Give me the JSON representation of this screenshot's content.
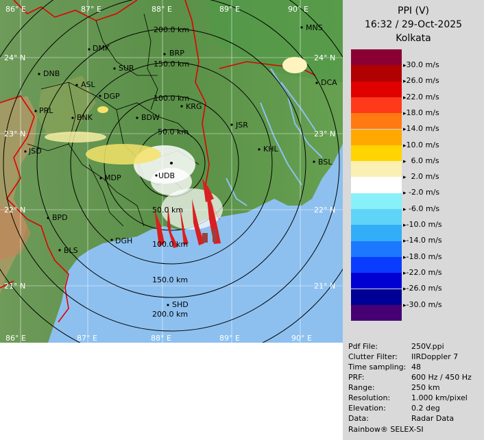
{
  "panel": {
    "product": "PPI (V)",
    "datetime": "16:32 / 29-Oct-2025",
    "station": "Kolkata"
  },
  "scale": [
    {
      "label": "30.0 m/s",
      "color": "#8b0034"
    },
    {
      "label": "26.0 m/s",
      "color": "#b00000"
    },
    {
      "label": "22.0 m/s",
      "color": "#e00000"
    },
    {
      "label": "18.0 m/s",
      "color": "#ff3a1a"
    },
    {
      "label": "14.0 m/s",
      "color": "#ff7a10"
    },
    {
      "label": "10.0 m/s",
      "color": "#ffa800"
    },
    {
      "label": "  6.0 m/s",
      "color": "#ffd400"
    },
    {
      "label": "  2.0 m/s",
      "color": "#faf0b4"
    },
    {
      "label": " -2.0 m/s",
      "color": "#ffffff"
    },
    {
      "label": " -6.0 m/s",
      "color": "#88f0f8"
    },
    {
      "label": "-10.0 m/s",
      "color": "#5fd4f8"
    },
    {
      "label": "-14.0 m/s",
      "color": "#32aef8"
    },
    {
      "label": "-18.0 m/s",
      "color": "#1c78ff"
    },
    {
      "label": "-22.0 m/s",
      "color": "#0a3cff"
    },
    {
      "label": "-26.0 m/s",
      "color": "#0000d2"
    },
    {
      "label": "-30.0 m/s",
      "color": "#000096"
    },
    {
      "label": "",
      "color": "#460073"
    }
  ],
  "meta": [
    {
      "key": "Pdf File:",
      "value": "250V.ppi"
    },
    {
      "key": "Clutter Filter:",
      "value": "IIRDoppler 7"
    },
    {
      "key": "Time sampling:",
      "value": "48"
    },
    {
      "key": "PRF:",
      "value": "600 Hz / 450 Hz"
    },
    {
      "key": "Range:",
      "value": "250 km"
    },
    {
      "key": "Resolution:",
      "value": "1.000 km/pixel"
    },
    {
      "key": "Elevation:",
      "value": "0.2 deg"
    },
    {
      "key": "Data:",
      "value": "Radar Data"
    }
  ],
  "brand": "Rainbow® SELEX-SI",
  "map": {
    "lon_labels": [
      "86° E",
      "87° E",
      "88° E",
      "89° E",
      "90° E"
    ],
    "lat_labels": [
      "24° N",
      "23° N",
      "22° N",
      "21° N"
    ],
    "range_labels": [
      "50.0 km",
      "100.0 km",
      "150.0 km",
      "200.0 km"
    ],
    "cities": [
      "MNS",
      "DMK",
      "BRP",
      "DNB",
      "SUR",
      "ASL",
      "DGP",
      "KRG",
      "DCA",
      "PRL",
      "BNK",
      "BDW",
      "JSR",
      "JSD",
      "KHL",
      "BSL",
      "MDP",
      "UDB",
      "BPD",
      "DGH",
      "BLS",
      "SHD"
    ]
  }
}
